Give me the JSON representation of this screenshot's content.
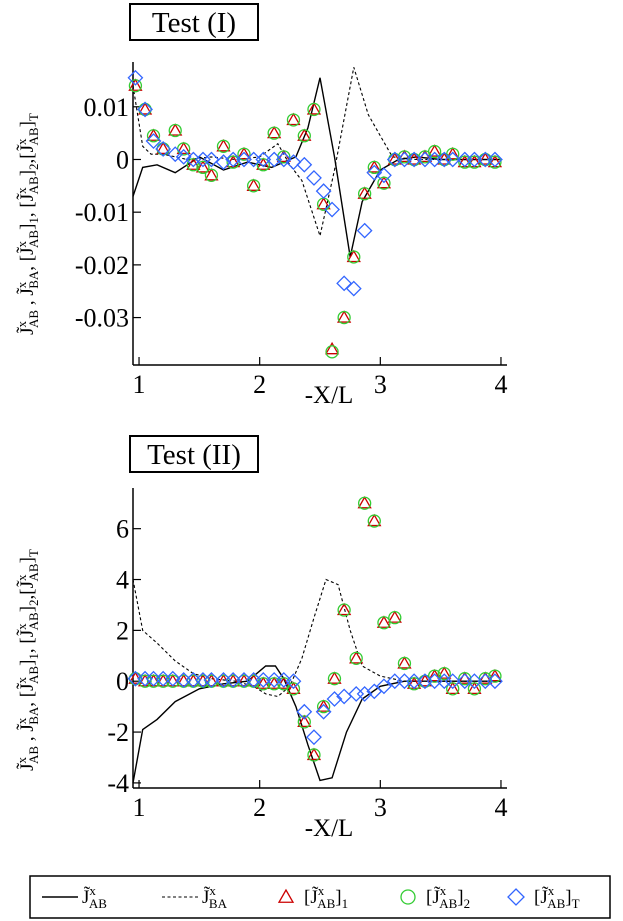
{
  "colors": {
    "series1": "#000000",
    "series2": "#000000",
    "series3": "#cc0000",
    "series4": "#33cc33",
    "series5": "#3366ff"
  },
  "legend": {
    "items": [
      {
        "name": "J̃",
        "sup": "x",
        "sub": "AB",
        "after": "",
        "subAfter": "",
        "marker": "solid-line"
      },
      {
        "name": "J̃",
        "sup": "x",
        "sub": "BA",
        "after": "",
        "subAfter": "",
        "marker": "dashed-line"
      },
      {
        "name": "[J̃",
        "sup": "x",
        "sub": "AB",
        "after": "]",
        "subAfter": "1",
        "marker": "triangle"
      },
      {
        "name": "[J̃",
        "sup": "x",
        "sub": "AB",
        "after": "]",
        "subAfter": "2",
        "marker": "circle"
      },
      {
        "name": "[J̃",
        "sup": "x",
        "sub": "AB",
        "after": "]",
        "subAfter": "T",
        "marker": "diamond"
      }
    ]
  },
  "chart_data": [
    {
      "type": "line",
      "title": "Test (I)",
      "xlabel": "-X/L",
      "ylabel": "J̃ˣAB , J̃ˣBA, [J̃ˣAB]1, [J̃ˣAB]2,[J̃ˣAB]T",
      "xlim": [
        0.95,
        4.05
      ],
      "ylim": [
        -0.039,
        0.0185
      ],
      "xticks": [
        1,
        2,
        3,
        4
      ],
      "xtick_labels": [
        "1",
        "2",
        "3",
        "4"
      ],
      "yticks": [
        0.01,
        0,
        -0.01,
        -0.02,
        -0.03
      ],
      "ytick_labels": [
        "0.01",
        "0",
        "-0.01",
        "-0.02",
        "-0.03"
      ],
      "series": [
        {
          "name": "J̃ˣAB",
          "style": "solid",
          "x": [
            0.95,
            1.03,
            1.15,
            1.3,
            1.5,
            1.7,
            1.9,
            2.1,
            2.3,
            2.4,
            2.5,
            2.62,
            2.75,
            2.85,
            3.0,
            3.15,
            3.3,
            3.5,
            4.0
          ],
          "y": [
            -0.007,
            -0.0015,
            -0.001,
            -0.0025,
            0.0005,
            -0.002,
            -0.0005,
            -0.0015,
            0.0005,
            0.006,
            0.0155,
            0.0005,
            -0.0185,
            -0.008,
            -0.002,
            0.0,
            0.0005,
            0.0,
            0.0
          ]
        },
        {
          "name": "J̃ˣBA",
          "style": "dashed",
          "x": [
            0.95,
            1.03,
            1.1,
            1.2,
            1.4,
            1.6,
            1.8,
            2.0,
            2.15,
            2.25,
            2.35,
            2.5,
            2.62,
            2.78,
            2.9,
            3.0,
            3.1,
            3.3,
            4.0
          ],
          "y": [
            0.014,
            0.0025,
            0.001,
            0.001,
            0.0,
            0.0005,
            0.0,
            0.0005,
            0.003,
            -0.001,
            -0.004,
            -0.0145,
            -0.002,
            0.0175,
            0.0085,
            0.0045,
            0.0005,
            0.0,
            0.0
          ]
        },
        {
          "name": "[J̃ˣAB]1",
          "style": "triangle",
          "x": [
            0.97,
            1.05,
            1.12,
            1.2,
            1.3,
            1.37,
            1.45,
            1.53,
            1.6,
            1.7,
            1.78,
            1.87,
            1.95,
            2.03,
            2.12,
            2.2,
            2.28,
            2.37,
            2.45,
            2.53,
            2.6,
            2.7,
            2.78,
            2.87,
            2.95,
            3.03,
            3.12,
            3.2,
            3.28,
            3.37,
            3.45,
            3.53,
            3.6,
            3.7,
            3.78,
            3.87,
            3.95
          ],
          "y": [
            0.014,
            0.0095,
            0.0045,
            0.002,
            0.0055,
            0.002,
            -0.001,
            -0.0015,
            -0.003,
            0.0025,
            -0.0005,
            0.001,
            -0.005,
            -0.001,
            0.005,
            0.0005,
            0.0075,
            0.0045,
            0.0095,
            -0.0085,
            -0.036,
            -0.03,
            -0.0185,
            -0.0065,
            -0.0015,
            -0.0045,
            0.0,
            0.0005,
            0.0,
            0.0005,
            0.0015,
            0.0,
            0.001,
            -0.0005,
            -0.0005,
            0.0,
            -0.0005
          ]
        },
        {
          "name": "[J̃ˣAB]2",
          "style": "circle",
          "x": [
            0.97,
            1.05,
            1.12,
            1.2,
            1.3,
            1.37,
            1.45,
            1.53,
            1.6,
            1.7,
            1.78,
            1.87,
            1.95,
            2.03,
            2.12,
            2.2,
            2.28,
            2.37,
            2.45,
            2.53,
            2.6,
            2.7,
            2.78,
            2.87,
            2.95,
            3.03,
            3.12,
            3.2,
            3.28,
            3.37,
            3.45,
            3.53,
            3.6,
            3.7,
            3.78,
            3.87,
            3.95
          ],
          "y": [
            0.014,
            0.0095,
            0.0045,
            0.002,
            0.0055,
            0.002,
            -0.001,
            -0.0015,
            -0.003,
            0.0025,
            -0.0005,
            0.001,
            -0.005,
            -0.001,
            0.005,
            0.0005,
            0.0075,
            0.0045,
            0.0095,
            -0.0085,
            -0.0365,
            -0.03,
            -0.0185,
            -0.0065,
            -0.0015,
            -0.0045,
            0.0,
            0.0005,
            0.0,
            0.0005,
            0.0015,
            0.0,
            0.001,
            -0.0005,
            -0.0005,
            0.0,
            -0.0005
          ]
        },
        {
          "name": "[J̃ˣAB]T",
          "style": "diamond",
          "x": [
            0.97,
            1.05,
            1.12,
            1.2,
            1.3,
            1.37,
            1.45,
            1.53,
            1.6,
            1.7,
            1.78,
            1.87,
            1.95,
            2.03,
            2.12,
            2.2,
            2.28,
            2.37,
            2.45,
            2.53,
            2.6,
            2.7,
            2.78,
            2.87,
            2.95,
            3.03,
            3.12,
            3.2,
            3.28,
            3.37,
            3.45,
            3.53,
            3.6,
            3.7,
            3.78,
            3.87,
            3.95
          ],
          "y": [
            0.0155,
            0.0095,
            0.0035,
            0.002,
            0.001,
            0.0005,
            0.0,
            0.0,
            0.0,
            -0.0005,
            0.0,
            0.0,
            0.0,
            0.0,
            0.0,
            0.0,
            -0.0005,
            -0.001,
            -0.0035,
            -0.006,
            -0.0095,
            -0.0235,
            -0.0245,
            -0.0135,
            -0.0025,
            -0.003,
            0.0,
            0.0,
            0.0,
            0.0,
            0.0,
            0.0,
            0.0,
            0.0,
            0.0,
            0.0,
            0.0
          ]
        }
      ]
    },
    {
      "type": "line",
      "title": "Test (II)",
      "xlabel": "-X/L",
      "ylabel": "J̃ˣAB , J̃ˣBA, [J̃ˣAB]1, [J̃ˣAB]2,[J̃ˣAB]T",
      "xlim": [
        0.95,
        4.05
      ],
      "ylim": [
        -4.2,
        7.6
      ],
      "xticks": [
        1,
        2,
        3,
        4
      ],
      "xtick_labels": [
        "1",
        "2",
        "3",
        "4"
      ],
      "yticks": [
        6,
        4,
        2,
        0,
        -2,
        -4
      ],
      "ytick_labels": [
        "6",
        "4",
        "2",
        "0",
        "-2",
        "-4"
      ],
      "series": [
        {
          "name": "J̃ˣAB",
          "style": "solid",
          "x": [
            0.95,
            1.03,
            1.15,
            1.3,
            1.5,
            1.7,
            1.9,
            2.05,
            2.13,
            2.2,
            2.3,
            2.4,
            2.5,
            2.6,
            2.72,
            2.85,
            3.0,
            3.2,
            3.5,
            4.0
          ],
          "y": [
            -4.0,
            -1.9,
            -1.5,
            -0.8,
            -0.3,
            -0.1,
            0.0,
            0.6,
            0.6,
            0.1,
            -1.0,
            -2.5,
            -3.9,
            -3.8,
            -2.0,
            -0.7,
            -0.2,
            0.0,
            0.0,
            0.0
          ]
        },
        {
          "name": "J̃ˣBA",
          "style": "dashed",
          "x": [
            0.95,
            1.03,
            1.15,
            1.3,
            1.45,
            1.6,
            1.8,
            1.95,
            2.05,
            2.15,
            2.25,
            2.35,
            2.45,
            2.55,
            2.65,
            2.75,
            2.85,
            3.0,
            3.2,
            3.5,
            4.0
          ],
          "y": [
            4.0,
            2.0,
            1.5,
            0.8,
            0.3,
            0.1,
            0.0,
            -0.2,
            -0.5,
            -0.6,
            -0.2,
            0.9,
            2.5,
            4.0,
            3.8,
            2.0,
            0.6,
            0.2,
            0.0,
            0.0,
            0.0
          ]
        },
        {
          "name": "[J̃ˣAB]1",
          "style": "triangle",
          "x": [
            0.97,
            1.05,
            1.12,
            1.2,
            1.28,
            1.37,
            1.45,
            1.53,
            1.6,
            1.7,
            1.78,
            1.87,
            1.95,
            2.03,
            2.12,
            2.2,
            2.28,
            2.37,
            2.45,
            2.53,
            2.62,
            2.7,
            2.8,
            2.87,
            2.95,
            3.03,
            3.12,
            3.2,
            3.28,
            3.37,
            3.45,
            3.53,
            3.6,
            3.7,
            3.78,
            3.87,
            3.95
          ],
          "y": [
            0.1,
            0.0,
            0.0,
            0.0,
            0.0,
            0.0,
            0.0,
            0.0,
            0.0,
            0.0,
            0.0,
            0.0,
            0.0,
            -0.1,
            -0.1,
            -0.1,
            -0.3,
            -1.6,
            -2.9,
            -1.0,
            0.1,
            2.8,
            0.9,
            7.0,
            6.3,
            2.3,
            2.5,
            0.7,
            -0.1,
            0.0,
            0.2,
            0.3,
            -0.3,
            0.1,
            -0.3,
            0.1,
            0.2
          ]
        },
        {
          "name": "[J̃ˣAB]2",
          "style": "circle",
          "x": [
            0.97,
            1.05,
            1.12,
            1.2,
            1.28,
            1.37,
            1.45,
            1.53,
            1.6,
            1.7,
            1.78,
            1.87,
            1.95,
            2.03,
            2.12,
            2.2,
            2.28,
            2.37,
            2.45,
            2.53,
            2.62,
            2.7,
            2.8,
            2.87,
            2.95,
            3.03,
            3.12,
            3.2,
            3.28,
            3.37,
            3.45,
            3.53,
            3.6,
            3.7,
            3.78,
            3.87,
            3.95
          ],
          "y": [
            0.1,
            0.0,
            0.0,
            0.0,
            0.0,
            0.0,
            0.0,
            0.0,
            0.0,
            0.0,
            0.0,
            0.0,
            0.0,
            -0.1,
            -0.1,
            -0.1,
            -0.3,
            -1.6,
            -2.9,
            -1.0,
            0.1,
            2.8,
            0.9,
            7.0,
            6.3,
            2.3,
            2.5,
            0.7,
            -0.1,
            0.0,
            0.2,
            0.3,
            -0.3,
            0.1,
            -0.3,
            0.1,
            0.2
          ]
        },
        {
          "name": "[J̃ˣAB]T",
          "style": "diamond",
          "x": [
            0.97,
            1.05,
            1.12,
            1.2,
            1.28,
            1.37,
            1.45,
            1.53,
            1.6,
            1.7,
            1.78,
            1.87,
            1.95,
            2.03,
            2.12,
            2.2,
            2.28,
            2.37,
            2.45,
            2.53,
            2.62,
            2.7,
            2.8,
            2.87,
            2.95,
            3.03,
            3.12,
            3.2,
            3.28,
            3.37,
            3.45,
            3.53,
            3.6,
            3.7,
            3.78,
            3.87,
            3.95
          ],
          "y": [
            0.1,
            0.1,
            0.1,
            0.1,
            0.1,
            0.05,
            0.05,
            0.05,
            0.05,
            0.05,
            0.05,
            0.05,
            0.05,
            0.05,
            0.05,
            0.05,
            0.0,
            -1.2,
            -2.2,
            -1.2,
            -0.7,
            -0.6,
            -0.5,
            -0.5,
            -0.4,
            -0.2,
            0.0,
            0.0,
            0.0,
            0.0,
            0.0,
            0.0,
            0.0,
            0.0,
            0.0,
            0.0,
            0.0
          ]
        }
      ]
    }
  ]
}
